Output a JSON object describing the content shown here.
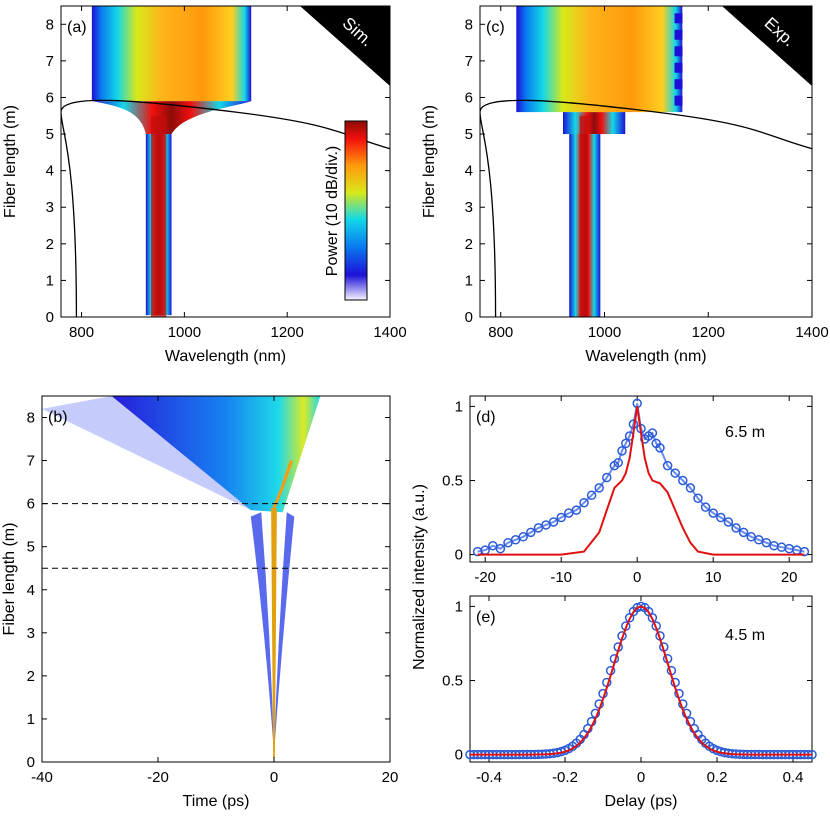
{
  "colors": {
    "colormap": [
      "#f8f4ff",
      "#1c10d8",
      "#0a7cf0",
      "#12d8e8",
      "#d8e81a",
      "#ff9a0c",
      "#f20f0c",
      "#8c0c0a"
    ],
    "sim_black_line": "#000000",
    "exp_marker": "#2a5bd7",
    "sim_red": "#e01010"
  },
  "chart_data": [
    {
      "id": "a",
      "type": "heatmap",
      "panel_label": "(a)",
      "corner_tag": "Sim.",
      "xlabel": "Wavelength (nm)",
      "ylabel": "Fiber length (m)",
      "xlim": [
        760,
        1400
      ],
      "ylim": [
        0,
        8.5
      ],
      "xticks": [
        800,
        1000,
        1200,
        1400
      ],
      "yticks": [
        0,
        1,
        2,
        3,
        4,
        5,
        6,
        7,
        8
      ],
      "colorbar_label": "Power (10 dB/div.)",
      "spectral_band": [
        {
          "z": 0.0,
          "center": 947,
          "width": 40
        },
        {
          "z": 3.0,
          "center": 948,
          "width": 34
        },
        {
          "z": 5.0,
          "center": 950,
          "width": 46
        },
        {
          "z": 5.6,
          "center": 955,
          "width": 90
        },
        {
          "z": 5.9,
          "lo": 820,
          "hi": 1130
        },
        {
          "z": 8.5,
          "lo": 820,
          "hi": 1130
        }
      ],
      "black_curve": [
        [
          790,
          0
        ],
        [
          790,
          4.5
        ],
        [
          760,
          5.1
        ],
        [
          760,
          5.6
        ],
        [
          790,
          5.9
        ],
        [
          900,
          5.95
        ],
        [
          1100,
          5.6
        ],
        [
          1300,
          5.0
        ],
        [
          1400,
          4.6
        ]
      ]
    },
    {
      "id": "c",
      "type": "heatmap",
      "panel_label": "(c)",
      "corner_tag": "Exp.",
      "xlabel": "Wavelength (nm)",
      "ylabel": "Fiber length (m)",
      "xlim": [
        760,
        1400
      ],
      "ylim": [
        0,
        8.5
      ],
      "xticks": [
        800,
        1000,
        1200,
        1400
      ],
      "yticks": [
        0,
        1,
        2,
        3,
        4,
        5,
        6,
        7,
        8
      ],
      "spectral_band": [
        {
          "z": 0.0,
          "lo": 930,
          "hi": 990
        },
        {
          "z": 5.0,
          "lo": 935,
          "hi": 990
        },
        {
          "z": 5.6,
          "lo": 920,
          "hi": 1040
        },
        {
          "z": 8.5,
          "lo": 830,
          "hi": 1150
        }
      ],
      "black_curve": [
        [
          790,
          0
        ],
        [
          790,
          4.5
        ],
        [
          760,
          5.1
        ],
        [
          760,
          5.6
        ],
        [
          790,
          5.9
        ],
        [
          900,
          5.95
        ],
        [
          1100,
          5.6
        ],
        [
          1300,
          5.0
        ],
        [
          1400,
          4.6
        ]
      ]
    },
    {
      "id": "b",
      "type": "heatmap",
      "panel_label": "(b)",
      "xlabel": "Time (ps)",
      "ylabel": "Fiber length (m)",
      "xlim": [
        -40,
        20
      ],
      "ylim": [
        0,
        8.5
      ],
      "xticks": [
        -40,
        -20,
        0,
        20
      ],
      "yticks": [
        0,
        1,
        2,
        3,
        4,
        5,
        6,
        7,
        8
      ],
      "dashed_lines_y": [
        6.0,
        4.5
      ],
      "temporal_fan": {
        "apex": [
          0,
          0.2
        ],
        "split": [
          0,
          5.8
        ],
        "top_left": -40,
        "top_right": 8,
        "left_wing": -4,
        "right_wing": 3
      }
    },
    {
      "id": "d",
      "type": "scatter",
      "panel_label": "(d)",
      "annotation": "6.5 m",
      "xlim": [
        -22,
        23
      ],
      "ylim": [
        -0.05,
        1.07
      ],
      "xticks": [
        -20,
        -10,
        0,
        10,
        20
      ],
      "yticks": [
        0,
        0.5,
        1
      ],
      "ytick_labels": [
        "0",
        "0.5",
        "1"
      ],
      "series": [
        {
          "kind": "exp",
          "x": [
            -21,
            -20,
            -19,
            -18,
            -17,
            -16,
            -15,
            -14,
            -13,
            -12,
            -11,
            -10,
            -9,
            -8,
            -7,
            -6,
            -5,
            -4,
            -3,
            -2.5,
            -2,
            -1.5,
            -1,
            -0.5,
            0,
            0.5,
            1,
            1.5,
            2,
            2.5,
            3,
            4,
            5,
            6,
            7,
            8,
            9,
            10,
            11,
            12,
            13,
            14,
            15,
            16,
            17,
            18,
            19,
            20,
            21,
            22
          ],
          "y": [
            0.02,
            0.03,
            0.06,
            0.04,
            0.08,
            0.1,
            0.12,
            0.15,
            0.18,
            0.2,
            0.22,
            0.25,
            0.28,
            0.3,
            0.35,
            0.4,
            0.45,
            0.52,
            0.6,
            0.62,
            0.7,
            0.75,
            0.8,
            0.88,
            1.02,
            0.85,
            0.78,
            0.8,
            0.82,
            0.75,
            0.72,
            0.6,
            0.55,
            0.5,
            0.45,
            0.38,
            0.32,
            0.28,
            0.25,
            0.22,
            0.18,
            0.15,
            0.12,
            0.1,
            0.08,
            0.06,
            0.05,
            0.04,
            0.03,
            0.02
          ]
        },
        {
          "kind": "sim",
          "x": [
            -21,
            -10,
            -7,
            -5,
            -4,
            -3,
            -2,
            -1.5,
            -1,
            -0.5,
            0,
            0.5,
            1,
            1.5,
            2,
            3,
            4,
            5,
            6,
            7,
            8,
            10,
            22
          ],
          "y": [
            0,
            0,
            0.02,
            0.15,
            0.3,
            0.45,
            0.5,
            0.55,
            0.65,
            0.82,
            1.0,
            0.82,
            0.65,
            0.55,
            0.5,
            0.48,
            0.42,
            0.3,
            0.18,
            0.08,
            0.02,
            0,
            0
          ]
        }
      ]
    },
    {
      "id": "e",
      "type": "scatter",
      "panel_label": "(e)",
      "annotation": "4.5 m",
      "xlabel": "Delay (ps)",
      "xlim": [
        -0.45,
        0.45
      ],
      "ylim": [
        -0.05,
        1.07
      ],
      "xticks": [
        -0.4,
        -0.2,
        0,
        0.2,
        0.4
      ],
      "xtick_labels": [
        "-0.4",
        "-0.2",
        "0",
        "0.2",
        "0.4"
      ],
      "yticks": [
        0,
        0.5,
        1
      ],
      "ytick_labels": [
        "0",
        "0.5",
        "1"
      ],
      "gaussian_sigma_ps": 0.075
    }
  ],
  "shared": {
    "right_ylabel": "Normalized intensity (a.u.)"
  }
}
